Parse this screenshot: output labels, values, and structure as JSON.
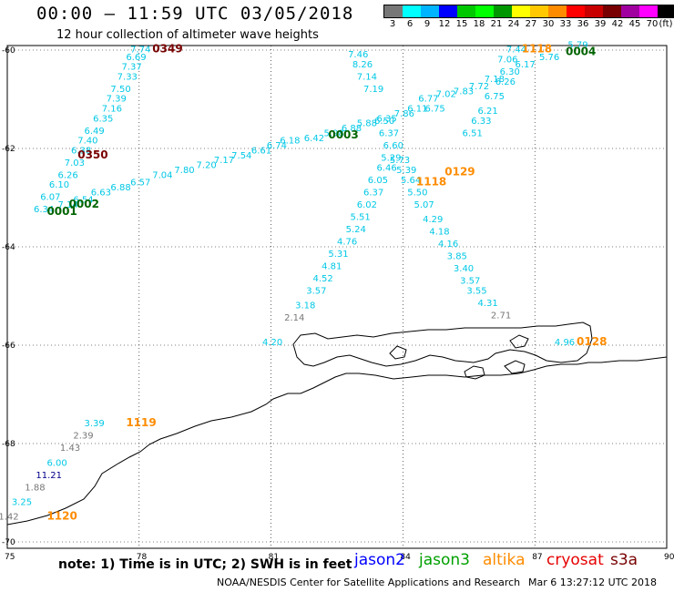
{
  "header": {
    "title": "00:00 — 11:59 UTC 03/05/2018",
    "subtitle": "12 hour collection of altimeter wave heights"
  },
  "legend": {
    "unit": "(ft)",
    "colors": [
      "#777777",
      "#00ffff",
      "#00b4ff",
      "#0000ff",
      "#00c800",
      "#00ff00",
      "#009600",
      "#ffff00",
      "#ffc800",
      "#ff8c00",
      "#ff0000",
      "#c80000",
      "#780000",
      "#a000a0",
      "#ff00ff",
      "#000000"
    ],
    "labels": [
      "3",
      "6",
      "9",
      "12",
      "15",
      "18",
      "21",
      "24",
      "27",
      "30",
      "33",
      "36",
      "39",
      "42",
      "45",
      "70"
    ]
  },
  "map": {
    "x_ticks": [
      {
        "lon": 75,
        "label": "75"
      },
      {
        "lon": 78,
        "label": "78"
      },
      {
        "lon": 81,
        "label": "81"
      },
      {
        "lon": 84,
        "label": "84"
      },
      {
        "lon": 87,
        "label": "87"
      },
      {
        "lon": 90,
        "label": "90"
      }
    ],
    "y_ticks": [
      {
        "lat": -60,
        "label": "-60"
      },
      {
        "lat": -62,
        "label": "-62"
      },
      {
        "lat": -64,
        "label": "-64"
      },
      {
        "lat": -66,
        "label": "-66"
      },
      {
        "lat": -68,
        "label": "-68"
      },
      {
        "lat": -70,
        "label": "-70"
      }
    ],
    "colors": {
      "cyan": "#00c8e6",
      "green": "#006400",
      "orange": "#ff8c00",
      "darkred": "#780000",
      "gray": "#777777",
      "navy": "#00008c"
    },
    "track_labels": [
      {
        "text": "7.74",
        "lon": 77.8,
        "lat": -60.05,
        "color": "cyan"
      },
      {
        "text": "6.69",
        "lon": 77.7,
        "lat": -60.2,
        "color": "cyan"
      },
      {
        "text": "7.37",
        "lon": 77.6,
        "lat": -60.4,
        "color": "cyan"
      },
      {
        "text": "7.33",
        "lon": 77.5,
        "lat": -60.6,
        "color": "cyan"
      },
      {
        "text": "7.50",
        "lon": 77.35,
        "lat": -60.85,
        "color": "cyan"
      },
      {
        "text": "7.39",
        "lon": 77.25,
        "lat": -61.05,
        "color": "cyan"
      },
      {
        "text": "7.16",
        "lon": 77.15,
        "lat": -61.25,
        "color": "cyan"
      },
      {
        "text": "6.35",
        "lon": 76.95,
        "lat": -61.45,
        "color": "cyan"
      },
      {
        "text": "6.49",
        "lon": 76.75,
        "lat": -61.7,
        "color": "cyan"
      },
      {
        "text": "7.40",
        "lon": 76.6,
        "lat": -61.9,
        "color": "cyan"
      },
      {
        "text": "6.38",
        "lon": 76.45,
        "lat": -62.1,
        "color": "cyan"
      },
      {
        "text": "7.03",
        "lon": 76.3,
        "lat": -62.35,
        "color": "cyan"
      },
      {
        "text": "6.26",
        "lon": 76.15,
        "lat": -62.6,
        "color": "cyan"
      },
      {
        "text": "6.10",
        "lon": 75.95,
        "lat": -62.8,
        "color": "cyan"
      },
      {
        "text": "6.07",
        "lon": 75.75,
        "lat": -63.05,
        "color": "cyan"
      },
      {
        "text": "6.34",
        "lon": 75.6,
        "lat": -63.3,
        "color": "cyan"
      },
      {
        "text": "7.14",
        "lon": 76.15,
        "lat": -63.2,
        "color": "cyan"
      },
      {
        "text": "6.54",
        "lon": 76.5,
        "lat": -63.1,
        "color": "cyan"
      },
      {
        "text": "6.63",
        "lon": 76.9,
        "lat": -62.95,
        "color": "cyan"
      },
      {
        "text": "6.88",
        "lon": 77.35,
        "lat": -62.85,
        "color": "cyan"
      },
      {
        "text": "6.57",
        "lon": 77.8,
        "lat": -62.75,
        "color": "cyan"
      },
      {
        "text": "7.04",
        "lon": 78.3,
        "lat": -62.6,
        "color": "cyan"
      },
      {
        "text": "7.80",
        "lon": 78.8,
        "lat": -62.5,
        "color": "cyan"
      },
      {
        "text": "7.20",
        "lon": 79.3,
        "lat": -62.4,
        "color": "cyan"
      },
      {
        "text": "7.17",
        "lon": 79.7,
        "lat": -62.3,
        "color": "cyan"
      },
      {
        "text": "7.54",
        "lon": 80.1,
        "lat": -62.2,
        "color": "cyan"
      },
      {
        "text": "6.61",
        "lon": 80.55,
        "lat": -62.1,
        "color": "cyan"
      },
      {
        "text": "6.74",
        "lon": 80.9,
        "lat": -62.0,
        "color": "cyan"
      },
      {
        "text": "6.18",
        "lon": 81.2,
        "lat": -61.9,
        "color": "cyan"
      },
      {
        "text": "6.42",
        "lon": 81.75,
        "lat": -61.85,
        "color": "cyan"
      },
      {
        "text": "5.98",
        "lon": 82.2,
        "lat": -61.75,
        "color": "cyan"
      },
      {
        "text": "6.88",
        "lon": 82.6,
        "lat": -61.65,
        "color": "cyan"
      },
      {
        "text": "5.88",
        "lon": 82.95,
        "lat": -61.55,
        "color": "cyan"
      },
      {
        "text": "6.35",
        "lon": 83.4,
        "lat": -61.45,
        "color": "cyan"
      },
      {
        "text": "7.86",
        "lon": 83.8,
        "lat": -61.35,
        "color": "cyan"
      },
      {
        "text": "6.11",
        "lon": 84.1,
        "lat": -61.25,
        "color": "cyan"
      },
      {
        "text": "6.75",
        "lon": 84.5,
        "lat": -61.25,
        "color": "cyan"
      },
      {
        "text": "6.77",
        "lon": 84.35,
        "lat": -61.05,
        "color": "cyan"
      },
      {
        "text": "7.02",
        "lon": 84.75,
        "lat": -60.95,
        "color": "cyan"
      },
      {
        "text": "7.83",
        "lon": 85.15,
        "lat": -60.9,
        "color": "cyan"
      },
      {
        "text": "7.72",
        "lon": 85.5,
        "lat": -60.8,
        "color": "cyan"
      },
      {
        "text": "7.18",
        "lon": 85.85,
        "lat": -60.65,
        "color": "cyan"
      },
      {
        "text": "6.30",
        "lon": 86.2,
        "lat": -60.5,
        "color": "cyan"
      },
      {
        "text": "7.06",
        "lon": 86.15,
        "lat": -60.25,
        "color": "cyan"
      },
      {
        "text": "7.44",
        "lon": 86.35,
        "lat": -60.05,
        "color": "cyan"
      },
      {
        "text": "6.17",
        "lon": 86.55,
        "lat": -60.35,
        "color": "cyan"
      },
      {
        "text": "5.76",
        "lon": 87.1,
        "lat": -60.2,
        "color": "cyan"
      },
      {
        "text": "5.79",
        "lon": 87.75,
        "lat": -59.95,
        "color": "cyan"
      },
      {
        "text": "6.26",
        "lon": 86.1,
        "lat": -60.7,
        "color": "cyan"
      },
      {
        "text": "6.75",
        "lon": 85.85,
        "lat": -61.0,
        "color": "cyan"
      },
      {
        "text": "6.21",
        "lon": 85.7,
        "lat": -61.3,
        "color": "cyan"
      },
      {
        "text": "6.33",
        "lon": 85.55,
        "lat": -61.5,
        "color": "cyan"
      },
      {
        "text": "6.51",
        "lon": 85.35,
        "lat": -61.75,
        "color": "cyan"
      },
      {
        "text": "7.46",
        "lon": 82.75,
        "lat": -60.15,
        "color": "cyan"
      },
      {
        "text": "8.26",
        "lon": 82.85,
        "lat": -60.35,
        "color": "cyan"
      },
      {
        "text": "7.14",
        "lon": 82.95,
        "lat": -60.6,
        "color": "cyan"
      },
      {
        "text": "7.19",
        "lon": 83.1,
        "lat": -60.85,
        "color": "cyan"
      },
      {
        "text": "6.50",
        "lon": 83.35,
        "lat": -61.5,
        "color": "cyan"
      },
      {
        "text": "6.37",
        "lon": 83.45,
        "lat": -61.75,
        "color": "cyan"
      },
      {
        "text": "6.60",
        "lon": 83.55,
        "lat": -62.0,
        "color": "cyan"
      },
      {
        "text": "5.29",
        "lon": 83.5,
        "lat": -62.25,
        "color": "cyan"
      },
      {
        "text": "5.73",
        "lon": 83.7,
        "lat": -62.3,
        "color": "cyan"
      },
      {
        "text": "6.46",
        "lon": 83.4,
        "lat": -62.45,
        "color": "cyan"
      },
      {
        "text": "5.39",
        "lon": 83.85,
        "lat": -62.5,
        "color": "cyan"
      },
      {
        "text": "6.05",
        "lon": 83.2,
        "lat": -62.7,
        "color": "cyan"
      },
      {
        "text": "5.64",
        "lon": 83.95,
        "lat": -62.7,
        "color": "cyan"
      },
      {
        "text": "6.37",
        "lon": 83.1,
        "lat": -62.95,
        "color": "cyan"
      },
      {
        "text": "5.50",
        "lon": 84.1,
        "lat": -62.95,
        "color": "cyan"
      },
      {
        "text": "6.02",
        "lon": 82.95,
        "lat": -63.2,
        "color": "cyan"
      },
      {
        "text": "5.07",
        "lon": 84.25,
        "lat": -63.2,
        "color": "cyan"
      },
      {
        "text": "5.51",
        "lon": 82.8,
        "lat": -63.45,
        "color": "cyan"
      },
      {
        "text": "4.29",
        "lon": 84.45,
        "lat": -63.5,
        "color": "cyan"
      },
      {
        "text": "5.24",
        "lon": 82.7,
        "lat": -63.7,
        "color": "cyan"
      },
      {
        "text": "4.18",
        "lon": 84.6,
        "lat": -63.75,
        "color": "cyan"
      },
      {
        "text": "4.76",
        "lon": 82.5,
        "lat": -63.95,
        "color": "cyan"
      },
      {
        "text": "4.16",
        "lon": 84.8,
        "lat": -64.0,
        "color": "cyan"
      },
      {
        "text": "5.31",
        "lon": 82.3,
        "lat": -64.2,
        "color": "cyan"
      },
      {
        "text": "4.81",
        "lon": 82.15,
        "lat": -64.45,
        "color": "cyan"
      },
      {
        "text": "3.85",
        "lon": 85.0,
        "lat": -64.25,
        "color": "cyan"
      },
      {
        "text": "4.52",
        "lon": 81.95,
        "lat": -64.7,
        "color": "cyan"
      },
      {
        "text": "3.40",
        "lon": 85.15,
        "lat": -64.5,
        "color": "cyan"
      },
      {
        "text": "3.57",
        "lon": 81.8,
        "lat": -64.95,
        "color": "cyan"
      },
      {
        "text": "3.57",
        "lon": 85.3,
        "lat": -64.75,
        "color": "cyan"
      },
      {
        "text": "3.18",
        "lon": 81.55,
        "lat": -65.25,
        "color": "cyan"
      },
      {
        "text": "3.55",
        "lon": 85.45,
        "lat": -64.95,
        "color": "cyan"
      },
      {
        "text": "4.31",
        "lon": 85.7,
        "lat": -65.2,
        "color": "cyan"
      },
      {
        "text": "2.14",
        "lon": 81.3,
        "lat": -65.5,
        "color": "gray"
      },
      {
        "text": "2.71",
        "lon": 86.0,
        "lat": -65.45,
        "color": "gray"
      },
      {
        "text": "4.20",
        "lon": 80.8,
        "lat": -66.0,
        "color": "cyan"
      },
      {
        "text": "4.96",
        "lon": 87.45,
        "lat": -66.0,
        "color": "cyan"
      },
      {
        "text": "3.39",
        "lon": 76.75,
        "lat": -67.65,
        "color": "cyan"
      },
      {
        "text": "2.39",
        "lon": 76.5,
        "lat": -67.9,
        "color": "gray"
      },
      {
        "text": "1.43",
        "lon": 76.2,
        "lat": -68.15,
        "color": "gray"
      },
      {
        "text": "6.00",
        "lon": 75.9,
        "lat": -68.45,
        "color": "cyan"
      },
      {
        "text": "11.21",
        "lon": 75.65,
        "lat": -68.7,
        "color": "navy"
      },
      {
        "text": "1.88",
        "lon": 75.4,
        "lat": -68.95,
        "color": "gray"
      },
      {
        "text": "3.25",
        "lon": 75.1,
        "lat": -69.25,
        "color": "cyan"
      },
      {
        "text": "1.42",
        "lon": 74.8,
        "lat": -69.55,
        "color": "gray"
      }
    ],
    "time_labels": [
      {
        "text": "0349",
        "lon": 78.3,
        "lat": -60.05,
        "color": "darkred"
      },
      {
        "text": "0350",
        "lon": 76.6,
        "lat": -62.2,
        "color": "darkred"
      },
      {
        "text": "0002",
        "lon": 76.4,
        "lat": -63.2,
        "color": "green"
      },
      {
        "text": "0001",
        "lon": 75.9,
        "lat": -63.35,
        "color": "green"
      },
      {
        "text": "0003",
        "lon": 82.3,
        "lat": -61.8,
        "color": "green"
      },
      {
        "text": "0004",
        "lon": 87.7,
        "lat": -60.1,
        "color": "green"
      },
      {
        "text": "1118",
        "lon": 86.7,
        "lat": -60.05,
        "color": "orange"
      },
      {
        "text": "1118",
        "lon": 84.3,
        "lat": -62.75,
        "color": "orange"
      },
      {
        "text": "0129",
        "lon": 84.95,
        "lat": -62.55,
        "color": "orange"
      },
      {
        "text": "0128",
        "lon": 87.95,
        "lat": -66.0,
        "color": "orange"
      },
      {
        "text": "1119",
        "lon": 77.7,
        "lat": -67.65,
        "color": "orange"
      },
      {
        "text": "1120",
        "lon": 75.9,
        "lat": -69.55,
        "color": "orange"
      }
    ]
  },
  "footer": {
    "note": "note: 1) Time is in UTC; 2) SWH is in feet",
    "satellites": [
      {
        "name": "jason2",
        "color": "#0000ff"
      },
      {
        "name": "jason3",
        "color": "#00a000"
      },
      {
        "name": "altika",
        "color": "#ff8c00"
      },
      {
        "name": "cryosat",
        "color": "#e60000"
      },
      {
        "name": "s3a",
        "color": "#780000"
      }
    ],
    "credit": "NOAA/NESDIS Center for Satellite Applications and Research",
    "timestamp": "Mar  6 13:27:12 UTC 2018"
  }
}
